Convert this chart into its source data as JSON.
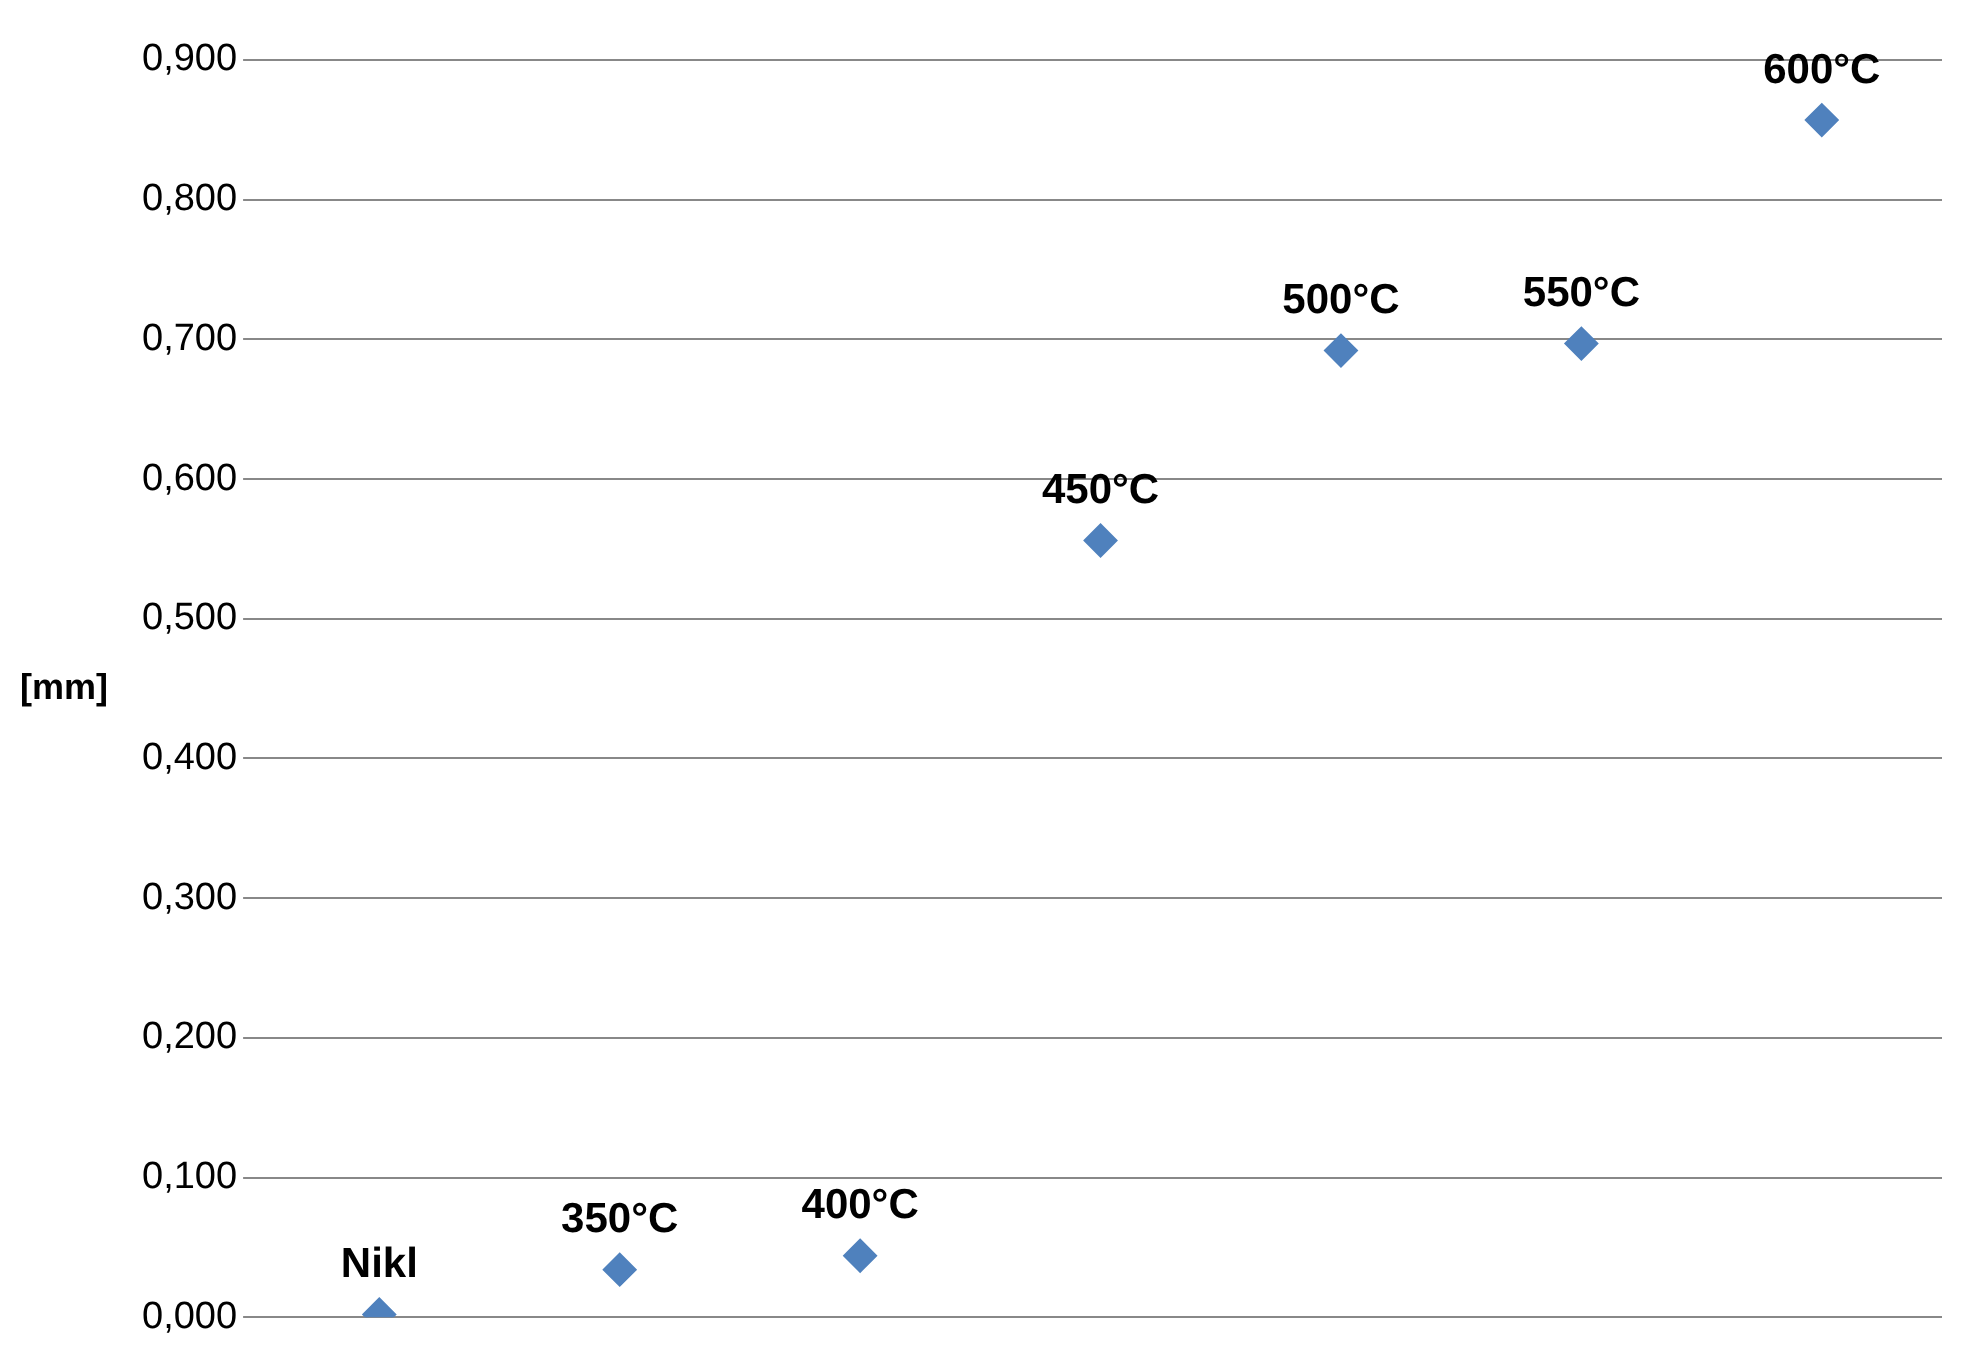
{
  "chart_data": {
    "type": "scatter",
    "ylabel": "[mm]",
    "categories": [
      "Nikl",
      "350°C",
      "400°C",
      "450°C",
      "500°C",
      "550°C",
      "600°C"
    ],
    "series": [
      {
        "color": "#4f81bd",
        "values": [
          0.002,
          0.034,
          0.044,
          0.556,
          0.692,
          0.697,
          0.857
        ]
      }
    ],
    "ylim": [
      0,
      0.9
    ],
    "yticks": [
      {
        "value": 0,
        "label": "0,000"
      },
      {
        "value": 0.1,
        "label": "0,100"
      },
      {
        "value": 0.2,
        "label": "0,200"
      },
      {
        "value": 0.3,
        "label": "0,300"
      },
      {
        "value": 0.4,
        "label": "0,400"
      },
      {
        "value": 0.5,
        "label": "0,500"
      },
      {
        "value": 0.6,
        "label": "0,600"
      },
      {
        "value": 0.7,
        "label": "0,700"
      },
      {
        "value": 0.8,
        "label": "0,800"
      },
      {
        "value": 0.9,
        "label": "0,900"
      }
    ],
    "grid": "y",
    "marker": "diamond",
    "legend": false,
    "tick_labels": "y"
  }
}
